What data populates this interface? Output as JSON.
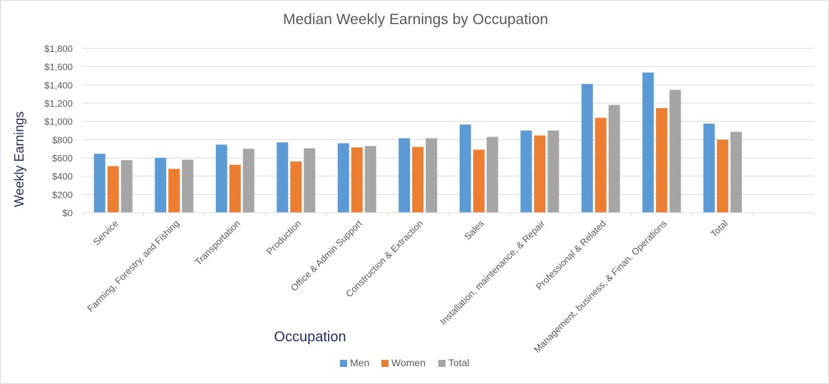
{
  "chart_data": {
    "type": "bar",
    "title": "Median Weekly Earnings by Occupation",
    "xlabel": "Occupation",
    "ylabel": "Weekly Earnings",
    "ylim": [
      0,
      1800
    ],
    "ytick_step": 200,
    "ytick_labels": [
      "$0",
      "$200",
      "$400",
      "$600",
      "$800",
      "$1,000",
      "$1,200",
      "$1,400",
      "$1,600",
      "$1,800"
    ],
    "grid": true,
    "legend_position": "bottom",
    "categories": [
      "Service",
      "Farming, Forestry, and Fishing",
      "Transportation",
      "Production",
      "Office & Admin Support",
      "Construction & Extraction",
      "Sales",
      "Installation, maintenance, & Repair",
      "Professional & Related",
      "Management, business, & Finan. Operations",
      "Total",
      ""
    ],
    "series": [
      {
        "name": "Men",
        "color": "#5b9bd5",
        "values": [
          645,
          600,
          745,
          770,
          760,
          815,
          965,
          900,
          1410,
          1535,
          975,
          null
        ]
      },
      {
        "name": "Women",
        "color": "#ed7d31",
        "values": [
          510,
          480,
          525,
          560,
          715,
          720,
          690,
          845,
          1040,
          1145,
          800,
          null
        ]
      },
      {
        "name": "Total",
        "color": "#a5a5a5",
        "values": [
          575,
          580,
          700,
          705,
          730,
          815,
          830,
          900,
          1180,
          1345,
          885,
          null
        ]
      }
    ]
  }
}
